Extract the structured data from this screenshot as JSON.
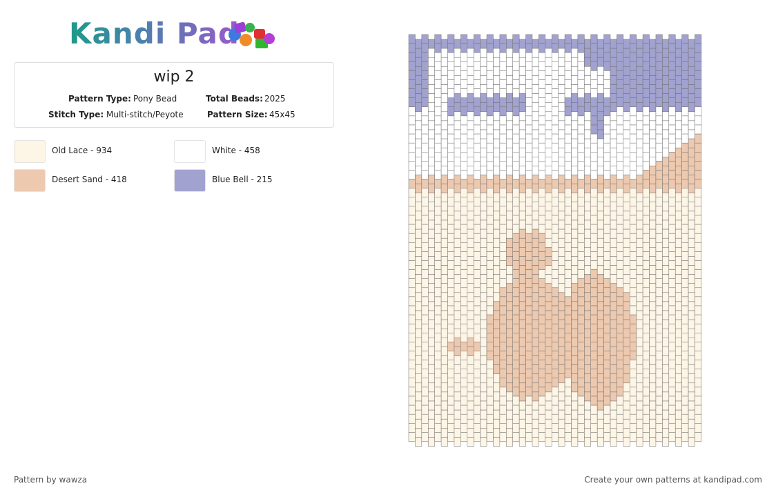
{
  "logo": "Kandi Pad",
  "pattern": {
    "title": "wip 2",
    "info": [
      {
        "label": "Pattern Type:",
        "value": "Pony Bead"
      },
      {
        "label": "Total Beads:",
        "value": "2025"
      },
      {
        "label": "Stitch Type:",
        "value": "Multi-stitch/Peyote"
      },
      {
        "label": "Pattern Size:",
        "value": "45x45"
      }
    ]
  },
  "legend": [
    {
      "text": "Old Lace - 934",
      "color": "#fdf5e6"
    },
    {
      "text": "White - 458",
      "color": "#ffffff"
    },
    {
      "text": "Desert Sand - 418",
      "color": "#edc9af"
    },
    {
      "text": "Blue Bell - 215",
      "color": "#a2a2d0"
    }
  ],
  "footer": {
    "author": "Pattern by wawza",
    "promo": "Create your own patterns at kandipad.com"
  }
}
